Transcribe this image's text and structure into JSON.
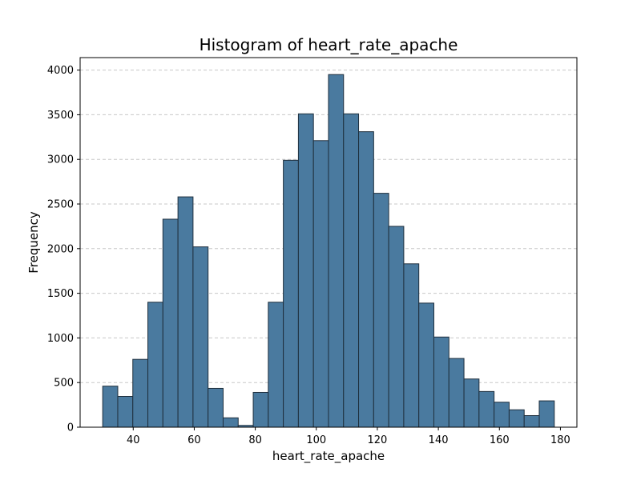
{
  "chart_data": {
    "type": "bar",
    "title": "Histogram of heart_rate_apache",
    "xlabel": "heart_rate_apache",
    "ylabel": "Frequency",
    "xlim": [
      22.6,
      185.4
    ],
    "ylim": [
      0,
      4140
    ],
    "xticks": [
      40,
      60,
      80,
      100,
      120,
      140,
      160,
      180
    ],
    "yticks": [
      0,
      500,
      1000,
      1500,
      2000,
      2500,
      3000,
      3500,
      4000
    ],
    "grid": {
      "axis": "y",
      "style": "dashed"
    },
    "bar_color": "#4a7a9f",
    "edge_color": "#1f2f3d",
    "bins": {
      "start": 30,
      "width": 4.933,
      "counts": [
        460,
        345,
        760,
        1400,
        2330,
        2580,
        2020,
        435,
        105,
        20,
        390,
        1400,
        2990,
        3510,
        3210,
        3950,
        3510,
        3310,
        2620,
        2250,
        1830,
        1390,
        1010,
        770,
        540,
        400,
        280,
        195,
        130,
        295
      ]
    }
  }
}
